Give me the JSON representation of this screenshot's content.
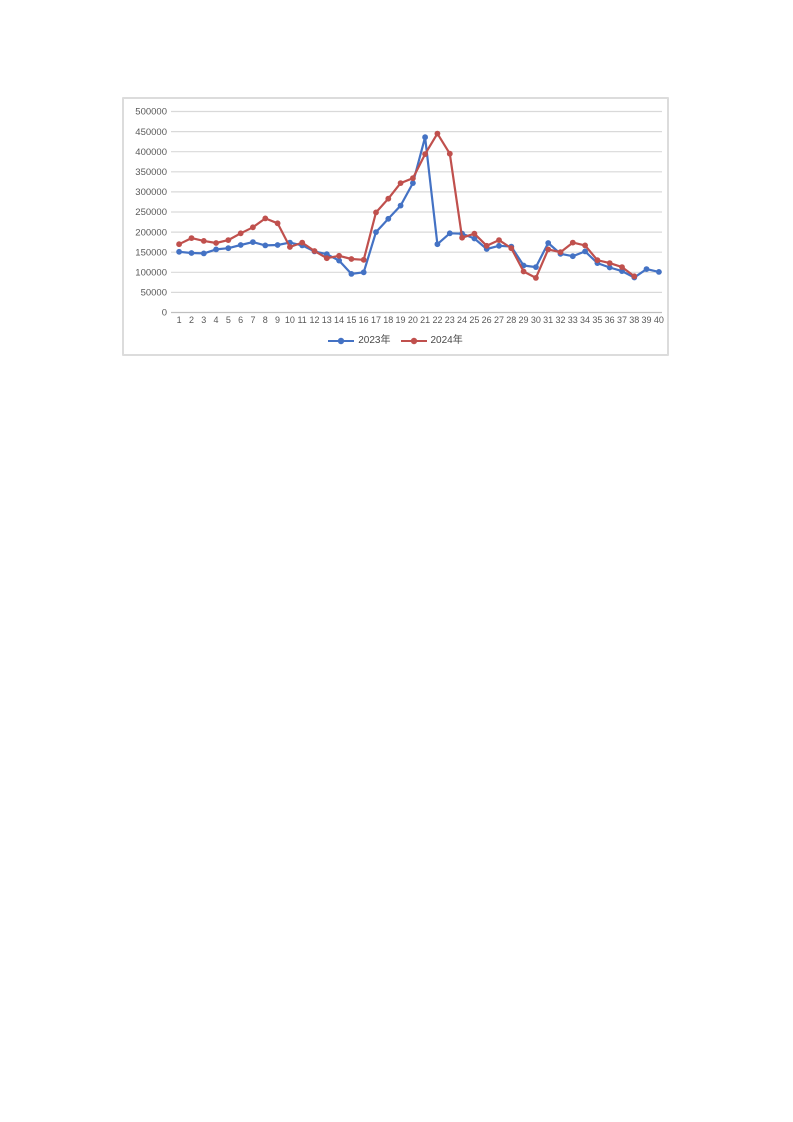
{
  "chart_data": {
    "type": "line",
    "title": "",
    "xlabel": "",
    "ylabel": "",
    "x": [
      1,
      2,
      3,
      4,
      5,
      6,
      7,
      8,
      9,
      10,
      11,
      12,
      13,
      14,
      15,
      16,
      17,
      18,
      19,
      20,
      21,
      22,
      23,
      24,
      25,
      26,
      27,
      28,
      29,
      30,
      31,
      32,
      33,
      34,
      35,
      36,
      37,
      38,
      39,
      40
    ],
    "series": [
      {
        "name": "2023年",
        "color": "#4472C4",
        "values": [
          151000,
          148000,
          147000,
          157000,
          160000,
          168000,
          175000,
          167000,
          168000,
          174000,
          167000,
          152000,
          145000,
          129000,
          96000,
          100000,
          200000,
          233000,
          266000,
          322000,
          436000,
          170000,
          197000,
          196000,
          184000,
          158000,
          166000,
          164000,
          117000,
          113000,
          173000,
          146000,
          140000,
          152000,
          123000,
          112000,
          103000,
          87000,
          108000,
          101000
        ]
      },
      {
        "name": "2024年",
        "color": "#C0504D",
        "values": [
          170000,
          185000,
          178000,
          173000,
          180000,
          197000,
          212000,
          234000,
          222000,
          163000,
          174000,
          153000,
          135000,
          141000,
          133000,
          131000,
          249000,
          283000,
          322000,
          334000,
          394000,
          445000,
          395000,
          186000,
          196000,
          166000,
          180000,
          160000,
          102000,
          86000,
          157000,
          150000,
          174000,
          167000,
          130000,
          123000,
          113000,
          90000
        ]
      }
    ],
    "ylim": [
      0,
      500000
    ],
    "yticks": [
      0,
      50000,
      100000,
      150000,
      200000,
      250000,
      300000,
      350000,
      400000,
      450000,
      500000
    ],
    "grid": true,
    "legend_position": "bottom",
    "axis_label_color": "#595959",
    "gridline_color": "#d9d9d9",
    "axis_line_color": "#bfbfbf"
  }
}
